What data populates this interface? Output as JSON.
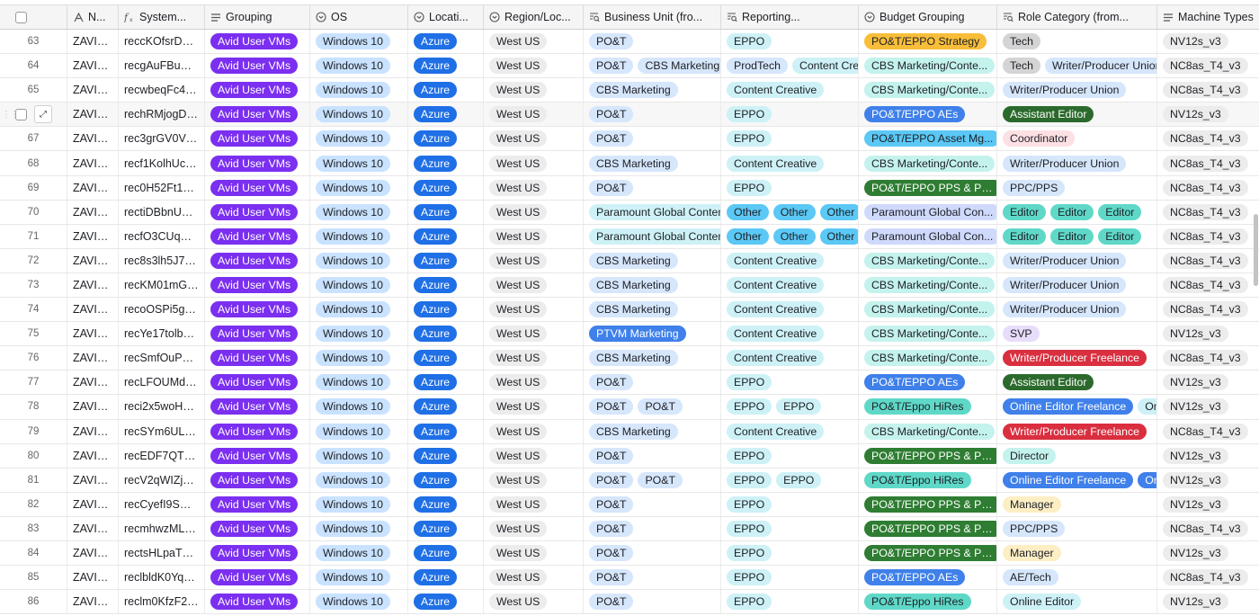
{
  "headers": [
    {
      "label": "",
      "icon": "select-all-checkbox"
    },
    {
      "label": "N...",
      "icon": "text-field-icon"
    },
    {
      "label": "System...",
      "icon": "formula-icon"
    },
    {
      "label": "Grouping",
      "icon": "list-field-icon"
    },
    {
      "label": "OS",
      "icon": "single-select-icon"
    },
    {
      "label": "Locati...",
      "icon": "single-select-icon"
    },
    {
      "label": "Region/Loc...",
      "icon": "single-select-icon"
    },
    {
      "label": "Business Unit (fro...",
      "icon": "lookup-icon"
    },
    {
      "label": "Reporting...",
      "icon": "lookup-icon"
    },
    {
      "label": "Budget Grouping",
      "icon": "single-select-icon"
    },
    {
      "label": "Role Category (from...",
      "icon": "lookup-icon"
    },
    {
      "label": "Machine Types",
      "icon": "list-field-icon"
    }
  ],
  "colors": {
    "purple": "#7b2ff0",
    "blue_light": "#c9e2ff",
    "azure": "#1f6fe6",
    "grey": "#ececec",
    "bu_light": "#d6e6fb",
    "cyan_light": "#cdf1f6",
    "teal_light": "#c4f2ec",
    "sky": "#5bc8f5",
    "green_dark": "#2e7d32",
    "orange": "#f8be3a",
    "pink_light": "#fde0e4",
    "red": "#d92f3f",
    "green_forest": "#2b6a2c",
    "teal_mid": "#5fd8c8",
    "blue_mid": "#3f80ea",
    "yellow_light": "#fdeec4"
  },
  "rows": [
    {
      "num": "63",
      "name": "ZAVID-...",
      "sys": "reccKOfsrDBg...",
      "grouping": "Avid User VMs",
      "os": "Windows 10",
      "loc": "Azure",
      "region": "West US",
      "bu": [
        {
          "t": "PO&T",
          "c": "bu_light"
        }
      ],
      "rep": [
        {
          "t": "EPPO",
          "c": "cyan_light"
        }
      ],
      "budget": {
        "t": "PO&T/EPPO Strategy",
        "c": "orange"
      },
      "role": [
        {
          "t": "Tech",
          "c": "grey_dark"
        }
      ],
      "machine": "NV12s_v3"
    },
    {
      "num": "64",
      "name": "ZAVID-...",
      "sys": "recgAuFBuNnF...",
      "grouping": "Avid User VMs",
      "os": "Windows 10",
      "loc": "Azure",
      "region": "West US",
      "bu": [
        {
          "t": "PO&T",
          "c": "bu_light"
        },
        {
          "t": "CBS Marketing",
          "c": "bu_light"
        }
      ],
      "rep": [
        {
          "t": "ProdTech",
          "c": "bu_light"
        },
        {
          "t": "Content Creative",
          "c": "cyan_light"
        }
      ],
      "budget": {
        "t": "CBS Marketing/Conte...",
        "c": "teal_light"
      },
      "role": [
        {
          "t": "Tech",
          "c": "grey_dark"
        },
        {
          "t": "Writer/Producer Union",
          "c": "bu_light"
        }
      ],
      "machine": "NC8as_T4_v3"
    },
    {
      "num": "65",
      "name": "ZAVID-...",
      "sys": "recwbeqFc4e7...",
      "grouping": "Avid User VMs",
      "os": "Windows 10",
      "loc": "Azure",
      "region": "West US",
      "bu": [
        {
          "t": "CBS Marketing",
          "c": "bu_light"
        }
      ],
      "rep": [
        {
          "t": "Content Creative",
          "c": "cyan_light"
        }
      ],
      "budget": {
        "t": "CBS Marketing/Conte...",
        "c": "teal_light"
      },
      "role": [
        {
          "t": "Writer/Producer Union",
          "c": "bu_light"
        }
      ],
      "machine": "NC8as_T4_v3"
    },
    {
      "num": "",
      "name": "ZAVID-...",
      "sys": "rechRMjogD6lf...",
      "grouping": "Avid User VMs",
      "os": "Windows 10",
      "loc": "Azure",
      "region": "West US",
      "bu": [
        {
          "t": "PO&T",
          "c": "bu_light"
        }
      ],
      "rep": [
        {
          "t": "EPPO",
          "c": "cyan_light"
        }
      ],
      "budget": {
        "t": "PO&T/EPPO AEs",
        "c": "blue_mid"
      },
      "role": [
        {
          "t": "Assistant Editor",
          "c": "green_forest"
        }
      ],
      "machine": "NV12s_v3",
      "hover": true
    },
    {
      "num": "67",
      "name": "ZAVID-...",
      "sys": "rec3grGV0Vz7...",
      "grouping": "Avid User VMs",
      "os": "Windows 10",
      "loc": "Azure",
      "region": "West US",
      "bu": [
        {
          "t": "PO&T",
          "c": "bu_light"
        }
      ],
      "rep": [
        {
          "t": "EPPO",
          "c": "cyan_light"
        }
      ],
      "budget": {
        "t": "PO&T/EPPO Asset Mg...",
        "c": "sky"
      },
      "role": [
        {
          "t": "Coordinator",
          "c": "pink_light"
        }
      ],
      "machine": "NC8as_T4_v3"
    },
    {
      "num": "68",
      "name": "ZAVID-...",
      "sys": "recf1KolhUcpV...",
      "grouping": "Avid User VMs",
      "os": "Windows 10",
      "loc": "Azure",
      "region": "West US",
      "bu": [
        {
          "t": "CBS Marketing",
          "c": "bu_light"
        }
      ],
      "rep": [
        {
          "t": "Content Creative",
          "c": "cyan_light"
        }
      ],
      "budget": {
        "t": "CBS Marketing/Conte...",
        "c": "teal_light"
      },
      "role": [
        {
          "t": "Writer/Producer Union",
          "c": "bu_light"
        }
      ],
      "machine": "NC8as_T4_v3"
    },
    {
      "num": "69",
      "name": "ZAVID-...",
      "sys": "rec0H52Ft1xys...",
      "grouping": "Avid User VMs",
      "os": "Windows 10",
      "loc": "Azure",
      "region": "West US",
      "bu": [
        {
          "t": "PO&T",
          "c": "bu_light"
        }
      ],
      "rep": [
        {
          "t": "EPPO",
          "c": "cyan_light"
        }
      ],
      "budget": {
        "t": "PO&T/EPPO PPS & PPC",
        "c": "green_dark"
      },
      "role": [
        {
          "t": "PPC/PPS",
          "c": "bu_light"
        }
      ],
      "machine": "NC8as_T4_v3"
    },
    {
      "num": "70",
      "name": "ZAVID-...",
      "sys": "rectiDBbnUAb...",
      "grouping": "Avid User VMs",
      "os": "Windows 10",
      "loc": "Azure",
      "region": "West US",
      "bu": [
        {
          "t": "Paramount Global Content I",
          "c": "cyan_light"
        }
      ],
      "rep": [
        {
          "t": "Other",
          "c": "sky"
        },
        {
          "t": "Other",
          "c": "sky"
        },
        {
          "t": "Other",
          "c": "sky"
        }
      ],
      "budget": {
        "t": "Paramount Global Con...",
        "c": "bu_lav"
      },
      "role": [
        {
          "t": "Editor",
          "c": "teal_mid"
        },
        {
          "t": "Editor",
          "c": "teal_mid"
        },
        {
          "t": "Editor",
          "c": "teal_mid"
        }
      ],
      "machine": "NC8as_T4_v3"
    },
    {
      "num": "71",
      "name": "ZAVID-...",
      "sys": "recfO3CUqY7...",
      "grouping": "Avid User VMs",
      "os": "Windows 10",
      "loc": "Azure",
      "region": "West US",
      "bu": [
        {
          "t": "Paramount Global Content I",
          "c": "cyan_light"
        }
      ],
      "rep": [
        {
          "t": "Other",
          "c": "sky"
        },
        {
          "t": "Other",
          "c": "sky"
        },
        {
          "t": "Other",
          "c": "sky"
        }
      ],
      "budget": {
        "t": "Paramount Global Con...",
        "c": "bu_lav"
      },
      "role": [
        {
          "t": "Editor",
          "c": "teal_mid"
        },
        {
          "t": "Editor",
          "c": "teal_mid"
        },
        {
          "t": "Editor",
          "c": "teal_mid"
        }
      ],
      "machine": "NC8as_T4_v3"
    },
    {
      "num": "72",
      "name": "ZAVID-...",
      "sys": "rec8s3lh5J7m...",
      "grouping": "Avid User VMs",
      "os": "Windows 10",
      "loc": "Azure",
      "region": "West US",
      "bu": [
        {
          "t": "CBS Marketing",
          "c": "bu_light"
        }
      ],
      "rep": [
        {
          "t": "Content Creative",
          "c": "cyan_light"
        }
      ],
      "budget": {
        "t": "CBS Marketing/Conte...",
        "c": "teal_light"
      },
      "role": [
        {
          "t": "Writer/Producer Union",
          "c": "bu_light"
        }
      ],
      "machine": "NC8as_T4_v3"
    },
    {
      "num": "73",
      "name": "ZAVID-...",
      "sys": "recKM01mG7J...",
      "grouping": "Avid User VMs",
      "os": "Windows 10",
      "loc": "Azure",
      "region": "West US",
      "bu": [
        {
          "t": "CBS Marketing",
          "c": "bu_light"
        }
      ],
      "rep": [
        {
          "t": "Content Creative",
          "c": "cyan_light"
        }
      ],
      "budget": {
        "t": "CBS Marketing/Conte...",
        "c": "teal_light"
      },
      "role": [
        {
          "t": "Writer/Producer Union",
          "c": "bu_light"
        }
      ],
      "machine": "NC8as_T4_v3"
    },
    {
      "num": "74",
      "name": "ZAVID-...",
      "sys": "recoOSPi5gDk...",
      "grouping": "Avid User VMs",
      "os": "Windows 10",
      "loc": "Azure",
      "region": "West US",
      "bu": [
        {
          "t": "CBS Marketing",
          "c": "bu_light"
        }
      ],
      "rep": [
        {
          "t": "Content Creative",
          "c": "cyan_light"
        }
      ],
      "budget": {
        "t": "CBS Marketing/Conte...",
        "c": "teal_light"
      },
      "role": [
        {
          "t": "Writer/Producer Union",
          "c": "bu_light"
        }
      ],
      "machine": "NC8as_T4_v3"
    },
    {
      "num": "75",
      "name": "ZAVID-...",
      "sys": "recYe17tolbRD...",
      "grouping": "Avid User VMs",
      "os": "Windows 10",
      "loc": "Azure",
      "region": "West US",
      "bu": [
        {
          "t": "PTVM Marketing",
          "c": "blue_mid"
        }
      ],
      "rep": [
        {
          "t": "Content Creative",
          "c": "cyan_light"
        }
      ],
      "budget": {
        "t": "CBS Marketing/Conte...",
        "c": "teal_light"
      },
      "role": [
        {
          "t": "SVP",
          "c": "lav_light"
        }
      ],
      "machine": "NV12s_v3"
    },
    {
      "num": "76",
      "name": "ZAVID-...",
      "sys": "recSmfOuPwG...",
      "grouping": "Avid User VMs",
      "os": "Windows 10",
      "loc": "Azure",
      "region": "West US",
      "bu": [
        {
          "t": "CBS Marketing",
          "c": "bu_light"
        }
      ],
      "rep": [
        {
          "t": "Content Creative",
          "c": "cyan_light"
        }
      ],
      "budget": {
        "t": "CBS Marketing/Conte...",
        "c": "teal_light"
      },
      "role": [
        {
          "t": "Writer/Producer Freelance",
          "c": "red"
        }
      ],
      "machine": "NC8as_T4_v3"
    },
    {
      "num": "77",
      "name": "ZAVID-...",
      "sys": "recLFOUMdUg...",
      "grouping": "Avid User VMs",
      "os": "Windows 10",
      "loc": "Azure",
      "region": "West US",
      "bu": [
        {
          "t": "PO&T",
          "c": "bu_light"
        }
      ],
      "rep": [
        {
          "t": "EPPO",
          "c": "cyan_light"
        }
      ],
      "budget": {
        "t": "PO&T/EPPO AEs",
        "c": "blue_mid"
      },
      "role": [
        {
          "t": "Assistant Editor",
          "c": "green_forest"
        }
      ],
      "machine": "NV12s_v3"
    },
    {
      "num": "78",
      "name": "ZAVID-...",
      "sys": "reci2x5woHBx...",
      "grouping": "Avid User VMs",
      "os": "Windows 10",
      "loc": "Azure",
      "region": "West US",
      "bu": [
        {
          "t": "PO&T",
          "c": "bu_light"
        },
        {
          "t": "PO&T",
          "c": "bu_light"
        }
      ],
      "rep": [
        {
          "t": "EPPO",
          "c": "cyan_light"
        },
        {
          "t": "EPPO",
          "c": "cyan_light"
        }
      ],
      "budget": {
        "t": "PO&T/Eppo HiRes",
        "c": "teal_mid"
      },
      "role": [
        {
          "t": "Online Editor Freelance",
          "c": "blue_mid"
        },
        {
          "t": "Online",
          "c": "cyan_light"
        }
      ],
      "machine": "NV12s_v3"
    },
    {
      "num": "79",
      "name": "ZAVID-...",
      "sys": "recSYm6ULem...",
      "grouping": "Avid User VMs",
      "os": "Windows 10",
      "loc": "Azure",
      "region": "West US",
      "bu": [
        {
          "t": "CBS Marketing",
          "c": "bu_light"
        }
      ],
      "rep": [
        {
          "t": "Content Creative",
          "c": "cyan_light"
        }
      ],
      "budget": {
        "t": "CBS Marketing/Conte...",
        "c": "teal_light"
      },
      "role": [
        {
          "t": "Writer/Producer Freelance",
          "c": "red"
        }
      ],
      "machine": "NC8as_T4_v3"
    },
    {
      "num": "80",
      "name": "ZAVID-...",
      "sys": "recEDF7QTHS...",
      "grouping": "Avid User VMs",
      "os": "Windows 10",
      "loc": "Azure",
      "region": "West US",
      "bu": [
        {
          "t": "PO&T",
          "c": "bu_light"
        }
      ],
      "rep": [
        {
          "t": "EPPO",
          "c": "cyan_light"
        }
      ],
      "budget": {
        "t": "PO&T/EPPO PPS & PPC",
        "c": "green_dark"
      },
      "role": [
        {
          "t": "Director",
          "c": "teal_light"
        }
      ],
      "machine": "NV12s_v3"
    },
    {
      "num": "81",
      "name": "ZAVID-...",
      "sys": "recV2qWIZjpxp...",
      "grouping": "Avid User VMs",
      "os": "Windows 10",
      "loc": "Azure",
      "region": "West US",
      "bu": [
        {
          "t": "PO&T",
          "c": "bu_light"
        },
        {
          "t": "PO&T",
          "c": "bu_light"
        }
      ],
      "rep": [
        {
          "t": "EPPO",
          "c": "cyan_light"
        },
        {
          "t": "EPPO",
          "c": "cyan_light"
        }
      ],
      "budget": {
        "t": "PO&T/Eppo HiRes",
        "c": "teal_mid"
      },
      "role": [
        {
          "t": "Online Editor Freelance",
          "c": "blue_mid"
        },
        {
          "t": "Onlin",
          "c": "blue_mid"
        }
      ],
      "machine": "NV12s_v3"
    },
    {
      "num": "82",
      "name": "ZAVID-...",
      "sys": "recCyefI9SM4...",
      "grouping": "Avid User VMs",
      "os": "Windows 10",
      "loc": "Azure",
      "region": "West US",
      "bu": [
        {
          "t": "PO&T",
          "c": "bu_light"
        }
      ],
      "rep": [
        {
          "t": "EPPO",
          "c": "cyan_light"
        }
      ],
      "budget": {
        "t": "PO&T/EPPO PPS & PPC",
        "c": "green_dark"
      },
      "role": [
        {
          "t": "Manager",
          "c": "yellow_light"
        }
      ],
      "machine": "NV12s_v3"
    },
    {
      "num": "83",
      "name": "ZAVID-...",
      "sys": "recmhwzMLIG...",
      "grouping": "Avid User VMs",
      "os": "Windows 10",
      "loc": "Azure",
      "region": "West US",
      "bu": [
        {
          "t": "PO&T",
          "c": "bu_light"
        }
      ],
      "rep": [
        {
          "t": "EPPO",
          "c": "cyan_light"
        }
      ],
      "budget": {
        "t": "PO&T/EPPO PPS & PPC",
        "c": "green_dark"
      },
      "role": [
        {
          "t": "PPC/PPS",
          "c": "bu_light"
        }
      ],
      "machine": "NC8as_T4_v3"
    },
    {
      "num": "84",
      "name": "ZAVID-...",
      "sys": "rectsHLpaT22...",
      "grouping": "Avid User VMs",
      "os": "Windows 10",
      "loc": "Azure",
      "region": "West US",
      "bu": [
        {
          "t": "PO&T",
          "c": "bu_light"
        }
      ],
      "rep": [
        {
          "t": "EPPO",
          "c": "cyan_light"
        }
      ],
      "budget": {
        "t": "PO&T/EPPO PPS & PPC",
        "c": "green_dark"
      },
      "role": [
        {
          "t": "Manager",
          "c": "yellow_light"
        }
      ],
      "machine": "NV12s_v3"
    },
    {
      "num": "85",
      "name": "ZAVID-...",
      "sys": "reclbldK0Yq7W...",
      "grouping": "Avid User VMs",
      "os": "Windows 10",
      "loc": "Azure",
      "region": "West US",
      "bu": [
        {
          "t": "PO&T",
          "c": "bu_light"
        }
      ],
      "rep": [
        {
          "t": "EPPO",
          "c": "cyan_light"
        }
      ],
      "budget": {
        "t": "PO&T/EPPO AEs",
        "c": "blue_mid"
      },
      "role": [
        {
          "t": "AE/Tech",
          "c": "bu_light"
        }
      ],
      "machine": "NC8as_T4_v3"
    },
    {
      "num": "86",
      "name": "ZAVID-...",
      "sys": "reclm0KfzF2w...",
      "grouping": "Avid User VMs",
      "os": "Windows 10",
      "loc": "Azure",
      "region": "West US",
      "bu": [
        {
          "t": "PO&T",
          "c": "bu_light"
        }
      ],
      "rep": [
        {
          "t": "EPPO",
          "c": "cyan_light"
        }
      ],
      "budget": {
        "t": "PO&T/Eppo HiRes",
        "c": "teal_mid"
      },
      "role": [
        {
          "t": "Online Editor",
          "c": "cyan_light"
        }
      ],
      "machine": "NV12s_v3"
    }
  ]
}
